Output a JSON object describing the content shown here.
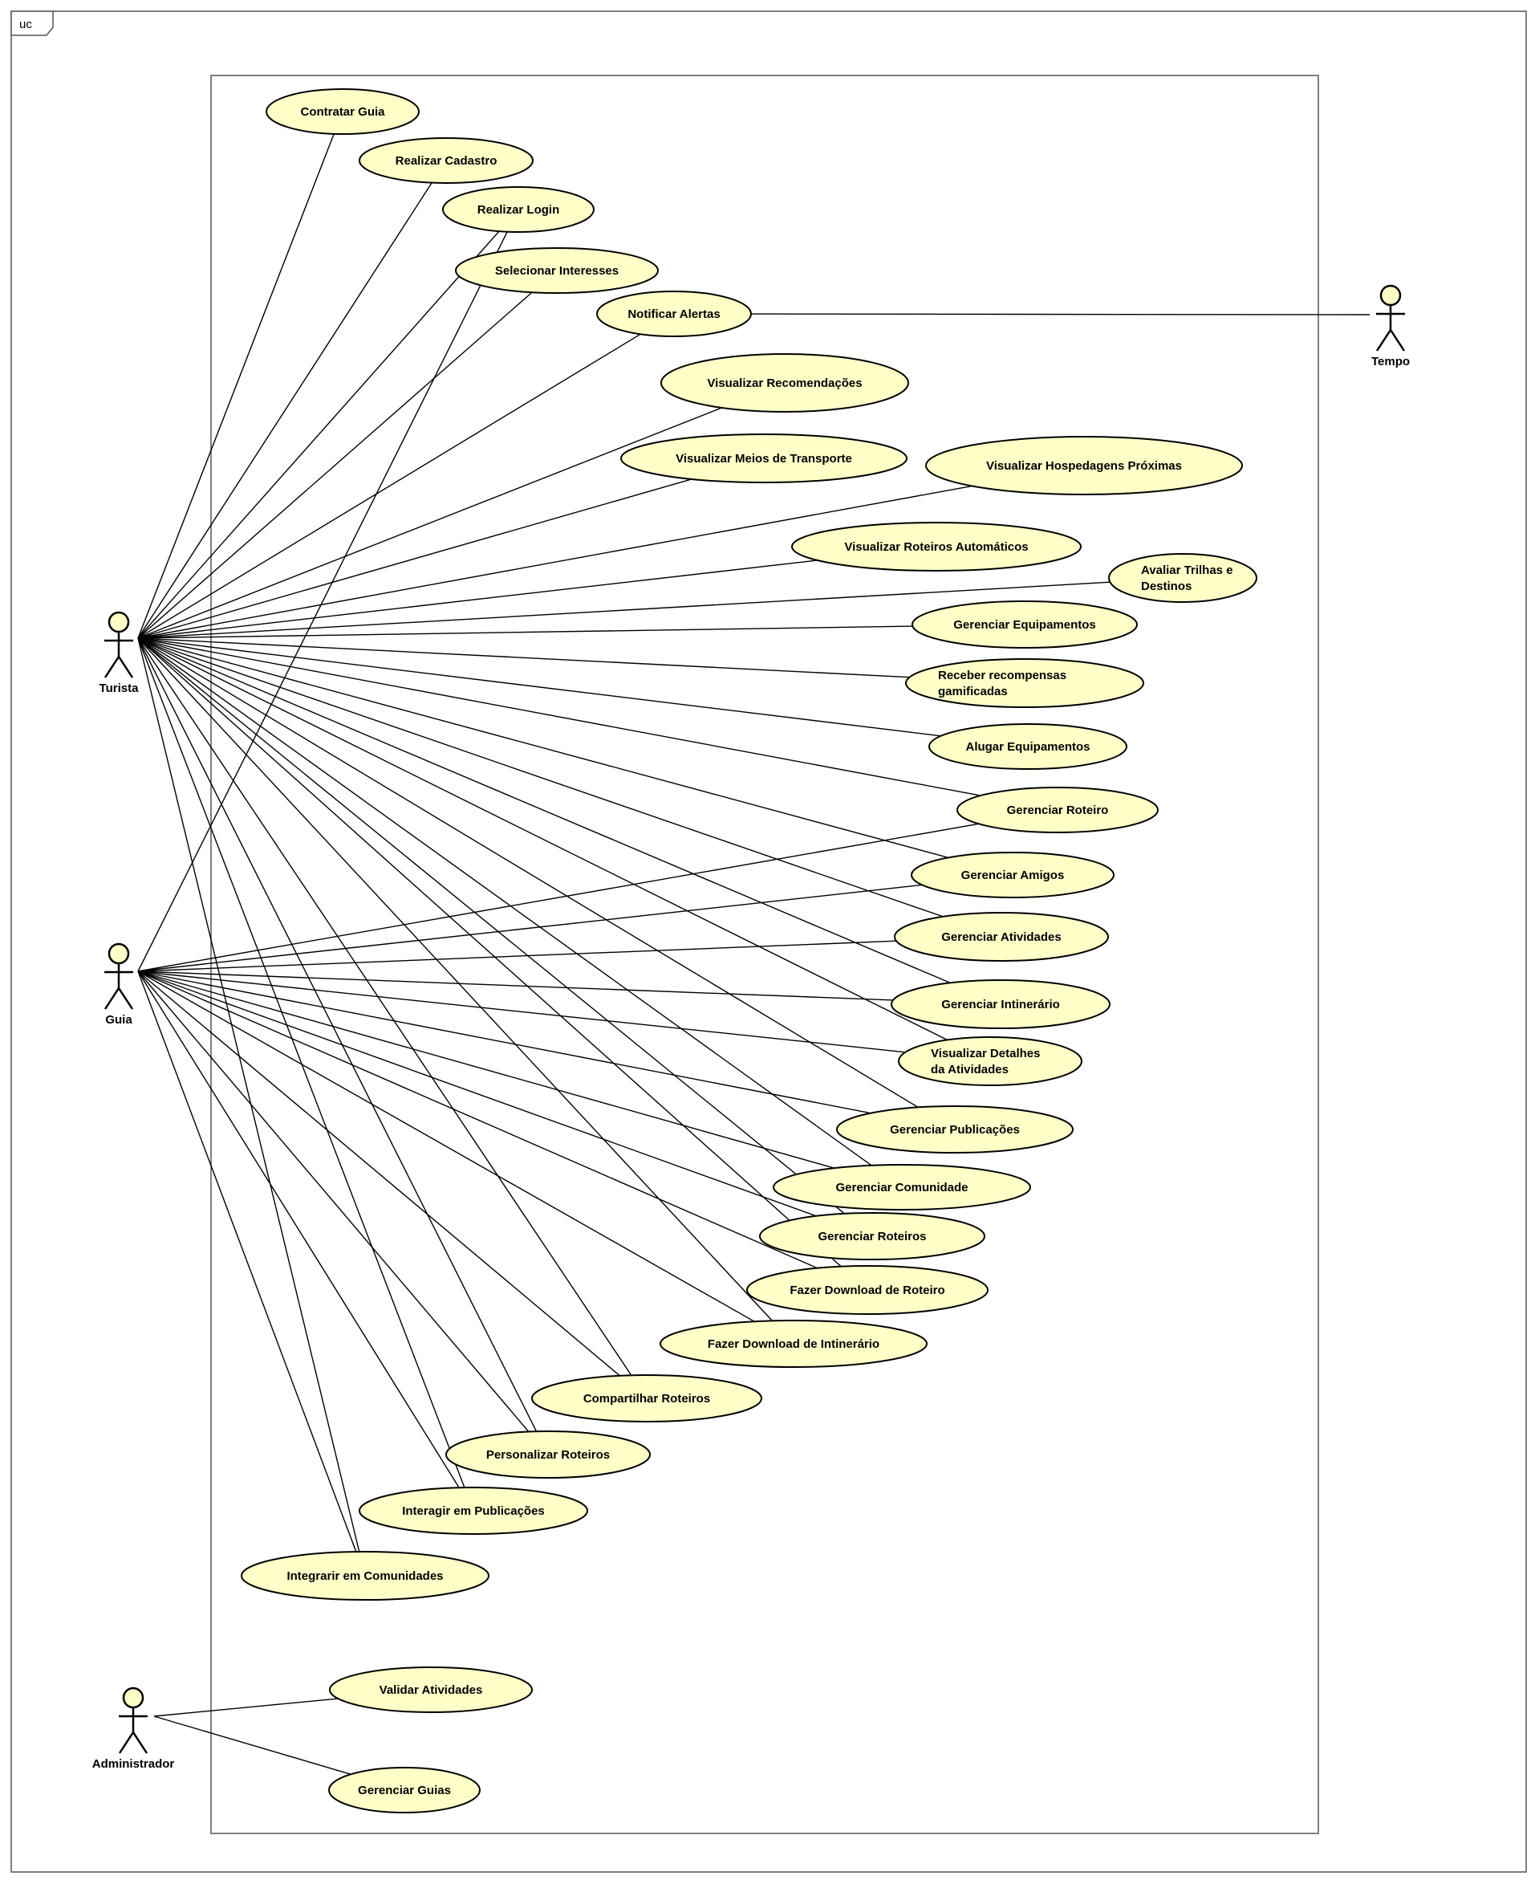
{
  "frame": {
    "label": "uc"
  },
  "actors": [
    {
      "id": "turista",
      "name": "Turista"
    },
    {
      "id": "guia",
      "name": "Guia"
    },
    {
      "id": "admin",
      "name": "Administrador"
    },
    {
      "id": "tempo",
      "name": "Tempo"
    }
  ],
  "use_cases": [
    {
      "id": "contratar_guia",
      "lines": [
        "Contratar Guia"
      ]
    },
    {
      "id": "realizar_cadastro",
      "lines": [
        "Realizar Cadastro"
      ]
    },
    {
      "id": "realizar_login",
      "lines": [
        "Realizar Login"
      ]
    },
    {
      "id": "selecionar_interesses",
      "lines": [
        "Selecionar Interesses"
      ]
    },
    {
      "id": "notificar_alertas",
      "lines": [
        "Notificar Alertas"
      ]
    },
    {
      "id": "visualizar_recomendacoes",
      "lines": [
        "Visualizar Recomendações"
      ]
    },
    {
      "id": "visualizar_meios_transporte",
      "lines": [
        "Visualizar Meios de Transporte"
      ]
    },
    {
      "id": "visualizar_hospedagens",
      "lines": [
        "Visualizar Hospedagens Próximas"
      ]
    },
    {
      "id": "visualizar_roteiros_auto",
      "lines": [
        "Visualizar Roteiros Automáticos"
      ]
    },
    {
      "id": "avaliar_trilhas",
      "lines": [
        "Avaliar Trilhas e",
        "Destinos"
      ]
    },
    {
      "id": "gerenciar_equipamentos",
      "lines": [
        "Gerenciar Equipamentos"
      ]
    },
    {
      "id": "receber_recompensas",
      "lines": [
        "Receber recompensas",
        "gamificadas"
      ]
    },
    {
      "id": "alugar_equipamentos",
      "lines": [
        "Alugar Equipamentos"
      ]
    },
    {
      "id": "gerenciar_roteiro",
      "lines": [
        "Gerenciar Roteiro"
      ]
    },
    {
      "id": "gerenciar_amigos",
      "lines": [
        "Gerenciar Amigos"
      ]
    },
    {
      "id": "gerenciar_atividades",
      "lines": [
        "Gerenciar Atividades"
      ]
    },
    {
      "id": "gerenciar_intinerario",
      "lines": [
        "Gerenciar Intinerário"
      ]
    },
    {
      "id": "visualizar_detalhes",
      "lines": [
        "Visualizar Detalhes",
        "da Atividades"
      ]
    },
    {
      "id": "gerenciar_publicacoes",
      "lines": [
        "Gerenciar Publicações"
      ]
    },
    {
      "id": "gerenciar_comunidade",
      "lines": [
        "Gerenciar Comunidade"
      ]
    },
    {
      "id": "gerenciar_roteiros",
      "lines": [
        "Gerenciar Roteiros"
      ]
    },
    {
      "id": "download_roteiro",
      "lines": [
        "Fazer Download de Roteiro"
      ]
    },
    {
      "id": "download_intinerario",
      "lines": [
        "Fazer Download de Intinerário"
      ]
    },
    {
      "id": "compartilhar_roteiros",
      "lines": [
        "Compartilhar Roteiros"
      ]
    },
    {
      "id": "personalizar_roteiros",
      "lines": [
        "Personalizar Roteiros"
      ]
    },
    {
      "id": "interagir_publicacoes",
      "lines": [
        "Interagir em Publicações"
      ]
    },
    {
      "id": "integrar_comunidades",
      "lines": [
        "Integrarir em Comunidades"
      ]
    },
    {
      "id": "validar_atividades",
      "lines": [
        "Validar Atividades"
      ]
    },
    {
      "id": "gerenciar_guias",
      "lines": [
        "Gerenciar Guias"
      ]
    }
  ],
  "associations": [
    [
      "turista",
      "contratar_guia"
    ],
    [
      "turista",
      "realizar_cadastro"
    ],
    [
      "turista",
      "realizar_login"
    ],
    [
      "turista",
      "selecionar_interesses"
    ],
    [
      "turista",
      "notificar_alertas"
    ],
    [
      "turista",
      "visualizar_recomendacoes"
    ],
    [
      "turista",
      "visualizar_meios_transporte"
    ],
    [
      "turista",
      "visualizar_hospedagens"
    ],
    [
      "turista",
      "visualizar_roteiros_auto"
    ],
    [
      "turista",
      "avaliar_trilhas"
    ],
    [
      "turista",
      "gerenciar_equipamentos"
    ],
    [
      "turista",
      "receber_recompensas"
    ],
    [
      "turista",
      "alugar_equipamentos"
    ],
    [
      "turista",
      "gerenciar_roteiro"
    ],
    [
      "turista",
      "gerenciar_amigos"
    ],
    [
      "turista",
      "gerenciar_atividades"
    ],
    [
      "turista",
      "gerenciar_intinerario"
    ],
    [
      "turista",
      "visualizar_detalhes"
    ],
    [
      "turista",
      "gerenciar_publicacoes"
    ],
    [
      "turista",
      "gerenciar_comunidade"
    ],
    [
      "turista",
      "gerenciar_roteiros"
    ],
    [
      "turista",
      "download_roteiro"
    ],
    [
      "turista",
      "download_intinerario"
    ],
    [
      "turista",
      "compartilhar_roteiros"
    ],
    [
      "turista",
      "personalizar_roteiros"
    ],
    [
      "turista",
      "interagir_publicacoes"
    ],
    [
      "turista",
      "integrar_comunidades"
    ],
    [
      "guia",
      "realizar_login"
    ],
    [
      "guia",
      "gerenciar_roteiro"
    ],
    [
      "guia",
      "gerenciar_amigos"
    ],
    [
      "guia",
      "gerenciar_atividades"
    ],
    [
      "guia",
      "gerenciar_intinerario"
    ],
    [
      "guia",
      "visualizar_detalhes"
    ],
    [
      "guia",
      "gerenciar_publicacoes"
    ],
    [
      "guia",
      "gerenciar_comunidade"
    ],
    [
      "guia",
      "gerenciar_roteiros"
    ],
    [
      "guia",
      "download_roteiro"
    ],
    [
      "guia",
      "download_intinerario"
    ],
    [
      "guia",
      "compartilhar_roteiros"
    ],
    [
      "guia",
      "personalizar_roteiros"
    ],
    [
      "guia",
      "interagir_publicacoes"
    ],
    [
      "guia",
      "integrar_comunidades"
    ],
    [
      "admin",
      "validar_atividades"
    ],
    [
      "admin",
      "gerenciar_guias"
    ],
    [
      "tempo",
      "notificar_alertas"
    ]
  ]
}
